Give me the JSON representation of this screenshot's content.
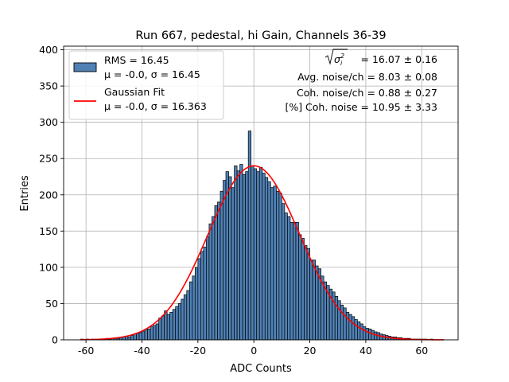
{
  "chart_data": {
    "type": "bar",
    "title": "Run 667, pedestal, hi Gain, Channels 36-39",
    "xlabel": "ADC Counts",
    "ylabel": "Entries",
    "xlim": [
      -68,
      73
    ],
    "ylim": [
      0,
      405
    ],
    "grid": true,
    "x_ticks": [
      -60,
      -40,
      -20,
      0,
      20,
      40,
      60
    ],
    "y_ticks": [
      0,
      50,
      100,
      150,
      200,
      250,
      300,
      350,
      400
    ],
    "bin_start": -62,
    "bin_width": 1,
    "hist_color": "#4f81b5",
    "fit_color": "#ff0000",
    "counts": [
      1,
      0,
      1,
      0,
      1,
      0,
      1,
      1,
      1,
      2,
      1,
      2,
      3,
      2,
      3,
      4,
      5,
      4,
      6,
      8,
      9,
      10,
      12,
      14,
      15,
      18,
      20,
      22,
      30,
      33,
      40,
      35,
      38,
      42,
      46,
      50,
      56,
      62,
      68,
      80,
      88,
      100,
      112,
      122,
      128,
      142,
      160,
      170,
      185,
      190,
      205,
      220,
      232,
      225,
      210,
      240,
      233,
      242,
      228,
      232,
      288,
      240,
      236,
      232,
      238,
      230,
      224,
      218,
      210,
      212,
      205,
      202,
      188,
      175,
      170,
      162,
      162,
      162,
      145,
      140,
      130,
      126,
      110,
      110,
      102,
      98,
      88,
      80,
      75,
      70,
      66,
      60,
      54,
      48,
      44,
      38,
      35,
      32,
      28,
      25,
      22,
      18,
      16,
      15,
      13,
      11,
      10,
      8,
      7,
      6,
      5,
      4,
      4,
      3,
      3,
      2,
      2,
      2,
      1,
      1,
      1,
      1,
      1,
      1,
      0,
      1,
      0
    ],
    "fit": {
      "name": "Gaussian Fit",
      "mu": 0.0,
      "sigma": 16.363,
      "amplitude": 240
    },
    "legend": {
      "placement": "upper-left",
      "hist_line1": "RMS = 16.45",
      "hist_line2": "μ = -0.0, σ = 16.45",
      "fit_line1": "Gaussian Fit",
      "fit_line2": "μ = -0.0, σ = 16.363"
    },
    "annotations": {
      "sigma_value": "= 16.07 ± 0.16",
      "avg_noise": "Avg. noise/ch = 8.03 ± 0.08",
      "coh_noise": "Coh. noise/ch = 0.88 ± 0.27",
      "coh_percent": "[%] Coh. noise = 10.95 ± 3.33"
    }
  }
}
